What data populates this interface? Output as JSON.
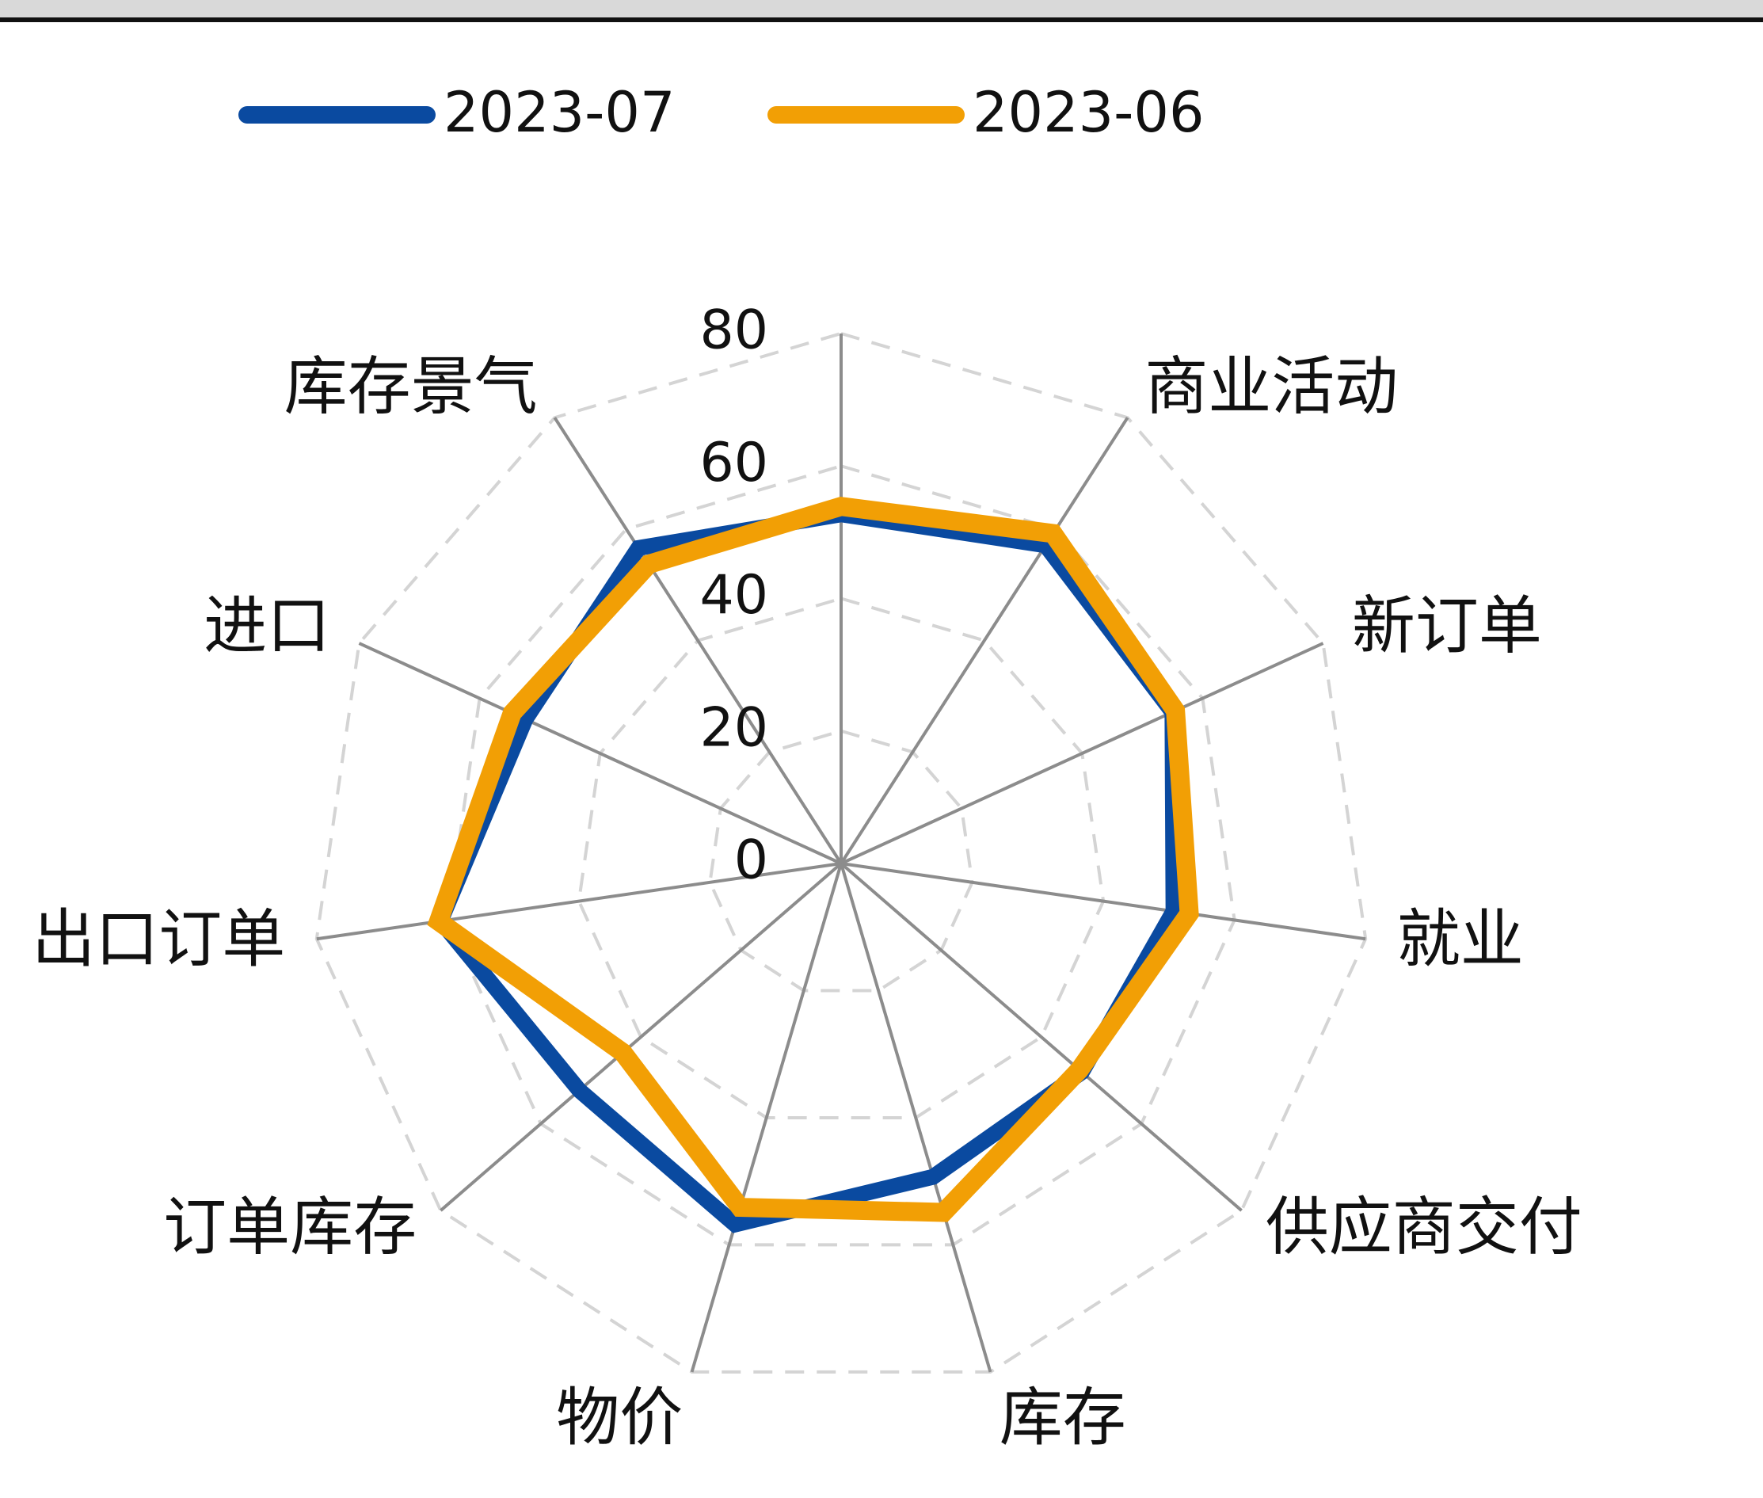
{
  "chart_data": {
    "type": "radar",
    "categories": [
      null,
      "商业活动",
      "新订单",
      "就业",
      "供应商交付",
      "库存",
      "物价",
      "订单库存",
      "出口订单",
      "进口",
      "库存景气"
    ],
    "series": [
      {
        "name": "2023-07",
        "color": "#0a4aa0",
        "values": [
          52.7,
          57.1,
          55.0,
          50.7,
          48.1,
          49.3,
          56.8,
          52.3,
          61.1,
          52.4,
          56.6
        ]
      },
      {
        "name": "2023-06",
        "color": "#f29f05",
        "values": [
          53.9,
          59.2,
          55.5,
          53.1,
          47.6,
          54.9,
          54.1,
          43.6,
          61.4,
          54.6,
          53.7
        ]
      }
    ],
    "ylim": [
      0,
      80
    ],
    "yticks": [
      0,
      20,
      40,
      60,
      80
    ],
    "grid": true
  }
}
